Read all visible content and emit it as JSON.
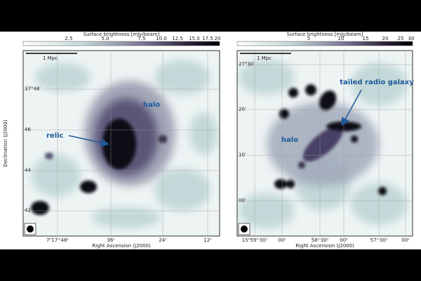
{
  "panels": [
    {
      "colorbar_label": "Surface brightness [mJy/beam]",
      "colorbar_ticks": [
        "2.5",
        "5.0",
        "7.5",
        "10.0",
        "12.5",
        "15.0",
        "17.5",
        "20"
      ],
      "y_axis_label": "Declination (J2000)",
      "y_ticks": [
        "37°48′",
        "46",
        "44",
        "42"
      ],
      "x_axis_label": "Right Ascension (J2000)",
      "x_ticks": [
        "7ʰ17ᵐ48ˢ",
        "36ˢ",
        "24ˢ",
        "12ˢ"
      ],
      "scale_bar": "1 Mpc",
      "annotations": [
        "halo",
        "relic"
      ]
    },
    {
      "colorbar_label": "Surface brightness [mJy/beam]",
      "colorbar_ticks": [
        "5",
        "10",
        "15",
        "20",
        "25",
        "30"
      ],
      "y_axis_label": "Declination (J2000)",
      "y_ticks": [
        "27°30′",
        "20′",
        "10′",
        "00′"
      ],
      "x_axis_label": "Right Ascension (J2000)",
      "x_ticks": [
        "15ʰ59ᵐ30ˢ",
        "00ˢ",
        "58ᵐ30ˢ",
        "00ˢ",
        "57ᵐ30ˢ",
        "00ˢ"
      ],
      "scale_bar": "1 Mpc",
      "annotations": [
        "tailed radio galaxy",
        "halo"
      ]
    }
  ]
}
